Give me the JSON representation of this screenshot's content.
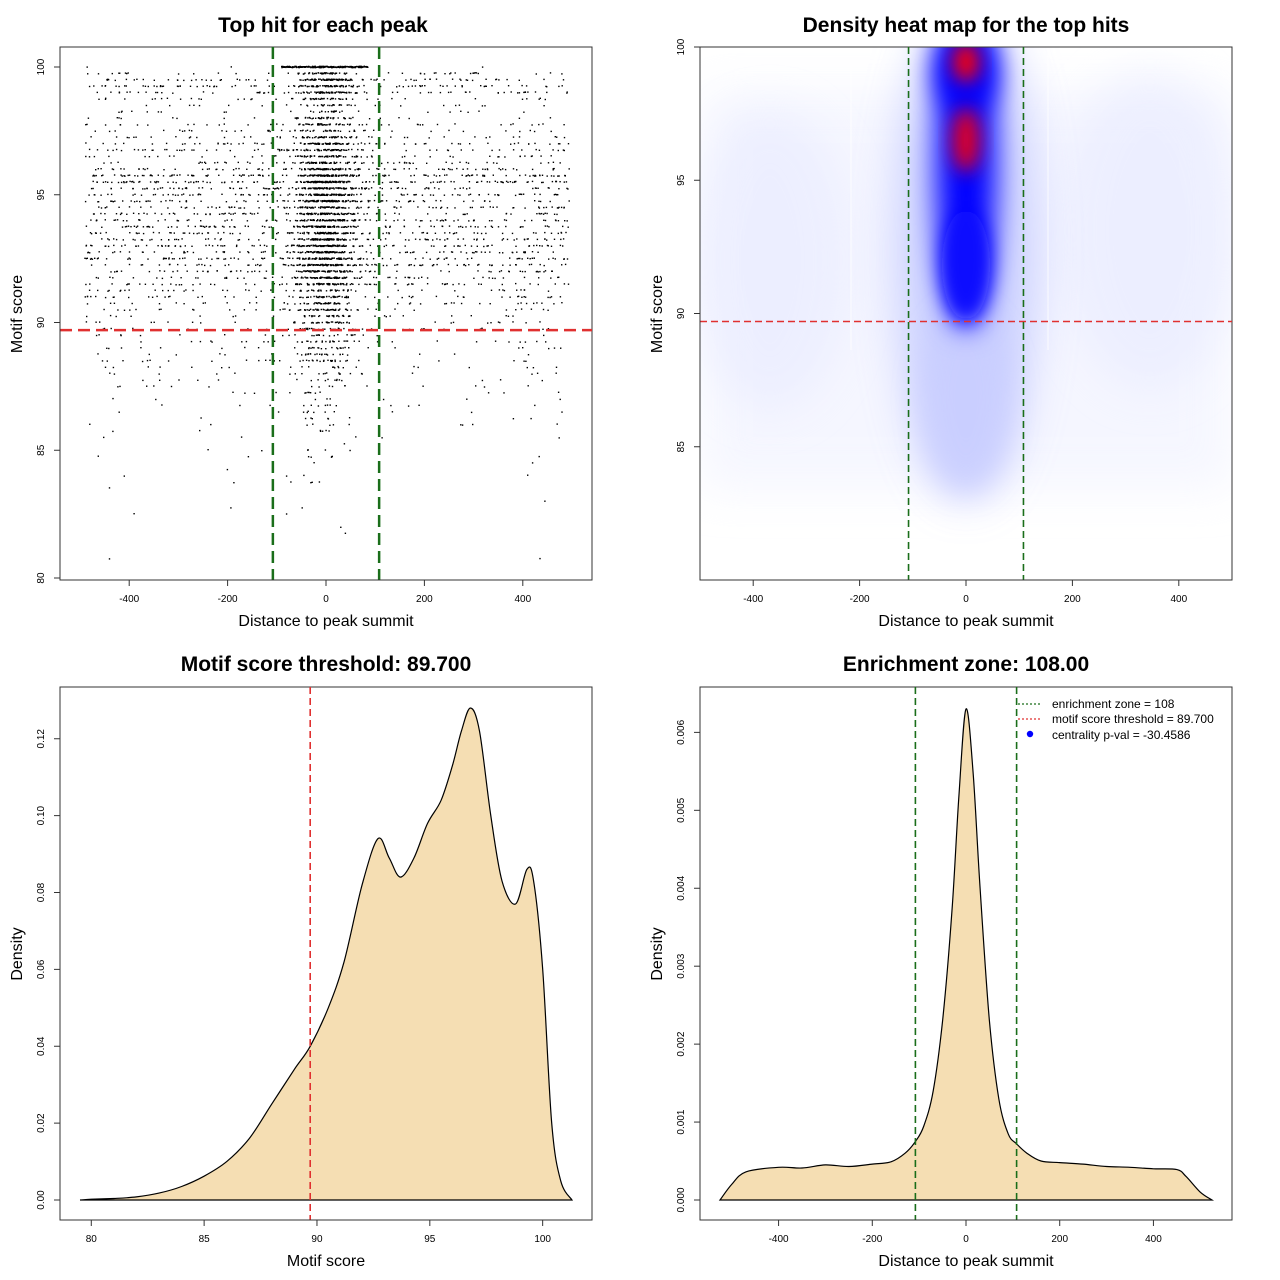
{
  "colors": {
    "points": "#000000",
    "threshold_line": "#e03030",
    "zone_line": "#1a6e1a",
    "fill": "#f5deb3",
    "heat_low": "#ffffff",
    "heat_mid": "#0000ff",
    "heat_high": "#ff0000",
    "legend_dot": "#0000ff"
  },
  "chart_data": [
    {
      "type": "scatter",
      "title": "Top hit for each peak",
      "xlabel": "Distance to peak summit",
      "ylabel": "Motif score",
      "xlim": [
        -500,
        500
      ],
      "ylim": [
        80,
        100
      ],
      "xticks": [
        "-400",
        "-200",
        "0",
        "200",
        "400"
      ],
      "yticks": [
        "80",
        "85",
        "90",
        "95",
        "100"
      ],
      "hlines": [
        89.7
      ],
      "vlines": [
        -108,
        108
      ],
      "sample_points": [
        [
          0,
          100
        ],
        [
          -20,
          97
        ],
        [
          10,
          95
        ],
        [
          -30,
          93
        ],
        [
          25,
          91
        ],
        [
          -5,
          88
        ],
        [
          15,
          86
        ],
        [
          -45,
          84
        ],
        [
          -420,
          99
        ],
        [
          -380,
          96
        ],
        [
          -300,
          94
        ],
        [
          -250,
          92
        ],
        [
          -460,
          90
        ],
        [
          -430,
          88
        ],
        [
          -480,
          86
        ],
        [
          -410,
          84
        ],
        [
          -440,
          83.5
        ],
        [
          -390,
          82.5
        ],
        [
          -440,
          80.8
        ],
        [
          350,
          99
        ],
        [
          420,
          96
        ],
        [
          300,
          94
        ],
        [
          460,
          92
        ],
        [
          380,
          90
        ],
        [
          430,
          88
        ],
        [
          470,
          86
        ],
        [
          410,
          84
        ],
        [
          445,
          83
        ],
        [
          435,
          80.8
        ],
        [
          -80,
          84
        ],
        [
          30,
          82
        ]
      ]
    },
    {
      "type": "heatmap",
      "title": "Density heat map for the top hits",
      "xlabel": "Distance to peak summit",
      "ylabel": "Motif score",
      "xlim": [
        -500,
        500
      ],
      "ylim": [
        80,
        100
      ],
      "xticks": [
        "-400",
        "-200",
        "0",
        "200",
        "400"
      ],
      "yticks": [
        "85",
        "90",
        "95",
        "100"
      ],
      "hlines": [
        89.7
      ],
      "vlines": [
        -108,
        108
      ],
      "density_peaks": [
        {
          "x": 0,
          "y": 99.5,
          "level": "high"
        },
        {
          "x": 0,
          "y": 96.8,
          "level": "high"
        },
        {
          "x": 0,
          "y": 92.5,
          "level": "medium"
        }
      ]
    },
    {
      "type": "area",
      "title": "Motif score threshold: 89.700",
      "xlabel": "Motif score",
      "ylabel": "Density",
      "xlim": [
        79.5,
        101.3
      ],
      "ylim": [
        0,
        0.128
      ],
      "xticks": [
        "80",
        "85",
        "90",
        "95",
        "100"
      ],
      "yticks": [
        "0.00",
        "0.02",
        "0.04",
        "0.06",
        "0.08",
        "0.10",
        "0.12"
      ],
      "vlines": [
        89.7
      ],
      "x": [
        79.5,
        80,
        81,
        82,
        83,
        84,
        85,
        86,
        87,
        88,
        89,
        89.7,
        90.5,
        91.2,
        92,
        92.7,
        93.2,
        93.7,
        94.3,
        94.9,
        95.5,
        96,
        96.4,
        96.8,
        97.2,
        97.7,
        98.2,
        98.8,
        99.3,
        99.6,
        100,
        100.4,
        100.8,
        101.3
      ],
      "y": [
        0,
        0.0002,
        0.0004,
        0.0008,
        0.0018,
        0.0035,
        0.0062,
        0.01,
        0.016,
        0.025,
        0.034,
        0.04,
        0.05,
        0.062,
        0.082,
        0.094,
        0.089,
        0.084,
        0.089,
        0.098,
        0.104,
        0.113,
        0.122,
        0.128,
        0.122,
        0.1,
        0.083,
        0.077,
        0.086,
        0.083,
        0.06,
        0.02,
        0.005,
        0
      ]
    },
    {
      "type": "area",
      "title": "Enrichment zone: 108.00",
      "xlabel": "Distance to peak summit",
      "ylabel": "Density",
      "xlim": [
        -525,
        525
      ],
      "ylim": [
        0,
        0.0063
      ],
      "xticks": [
        "-400",
        "-200",
        "0",
        "200",
        "400"
      ],
      "yticks": [
        "0.000",
        "0.001",
        "0.002",
        "0.003",
        "0.004",
        "0.005",
        "0.006"
      ],
      "vlines": [
        -108,
        108
      ],
      "x": [
        -525,
        -500,
        -470,
        -400,
        -350,
        -300,
        -250,
        -200,
        -160,
        -130,
        -108,
        -90,
        -70,
        -50,
        -30,
        -15,
        0,
        15,
        30,
        50,
        70,
        90,
        108,
        130,
        160,
        200,
        250,
        300,
        350,
        400,
        450,
        470,
        500,
        525
      ],
      "y": [
        0,
        0.0002,
        0.00036,
        0.00042,
        0.00041,
        0.00045,
        0.00043,
        0.00046,
        0.00049,
        0.0006,
        0.00075,
        0.00095,
        0.0014,
        0.0023,
        0.0037,
        0.0052,
        0.0063,
        0.0055,
        0.004,
        0.0023,
        0.0013,
        0.00085,
        0.00072,
        0.0006,
        0.0005,
        0.00048,
        0.00046,
        0.00043,
        0.00042,
        0.0004,
        0.00039,
        0.0003,
        0.0001,
        0
      ],
      "legend": [
        {
          "style": "green-dotted",
          "label": "enrichment zone = 108"
        },
        {
          "style": "red-dotted",
          "label": "motif score threshold = 89.700"
        },
        {
          "style": "blue-dot",
          "label": "centrality p-val = -30.4586"
        }
      ]
    }
  ]
}
